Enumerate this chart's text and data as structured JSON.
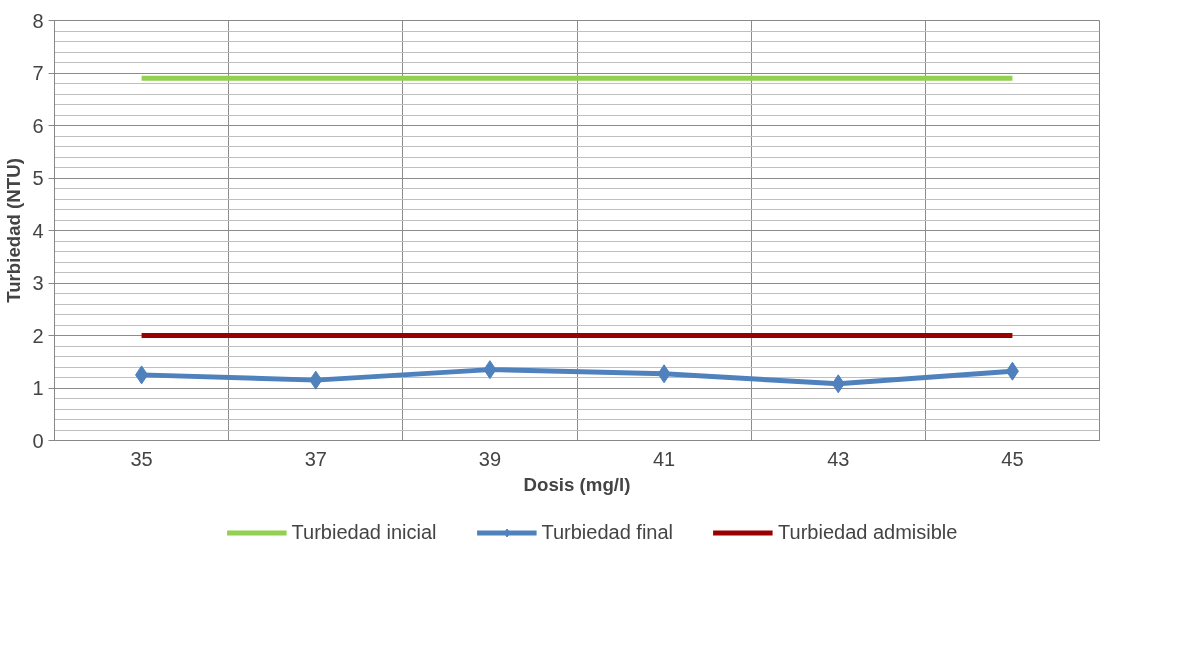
{
  "chart_data": {
    "type": "line",
    "xlabel": "Dosis (mg/l)",
    "ylabel": "Turbiedad (NTU)",
    "categories": [
      "35",
      "37",
      "39",
      "41",
      "43",
      "45"
    ],
    "series": [
      {
        "name": "Turbiedad inicial",
        "color": "#92d050",
        "values": [
          6.9,
          6.9,
          6.9,
          6.9,
          6.9,
          6.9
        ],
        "marker": "none"
      },
      {
        "name": "Turbiedad final",
        "color": "#4f81bd",
        "values": [
          1.25,
          1.15,
          1.35,
          1.27,
          1.08,
          1.32
        ],
        "marker": "diamond"
      },
      {
        "name": "Turbiedad admisible",
        "color": "#990000",
        "values": [
          2,
          2,
          2,
          2,
          2,
          2
        ],
        "marker": "none"
      }
    ],
    "ylim": [
      0,
      8
    ],
    "yticks": [
      0,
      1,
      2,
      3,
      4,
      5,
      6,
      7,
      8
    ],
    "grid": true,
    "legend": "bottom",
    "line_style": "solid"
  }
}
